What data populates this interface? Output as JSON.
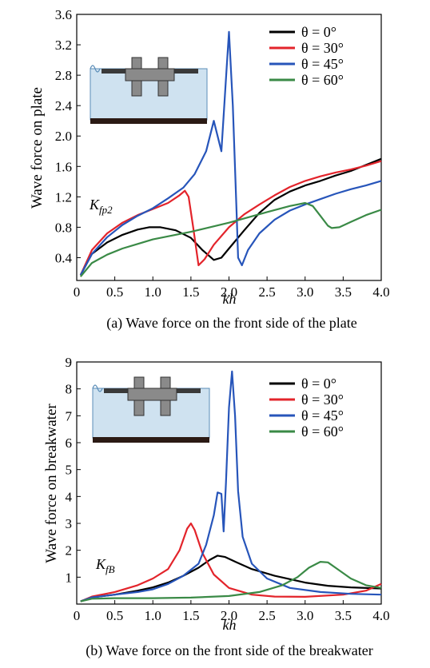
{
  "chart_data": [
    {
      "type": "line",
      "caption": "(a) Wave force on the front side of the plate",
      "xlabel": "kh",
      "ylabel": "Wave force on plate",
      "annotation": {
        "main": "K",
        "sub": "fp2"
      },
      "xlim": [
        0,
        4.0
      ],
      "ylim": [
        0.1,
        3.6
      ],
      "xticks": [
        "0",
        "0.5",
        "1.0",
        "1.5",
        "2.0",
        "2.5",
        "3.0",
        "3.5",
        "4.0"
      ],
      "yticks": [
        "0.4",
        "0.8",
        "1.2",
        "1.6",
        "2.0",
        "2.4",
        "2.8",
        "3.2",
        "3.6"
      ],
      "legend_position": "top-right",
      "series": [
        {
          "name": "θ = 0°",
          "color": "#000000",
          "points": [
            [
              0.05,
              0.17
            ],
            [
              0.2,
              0.45
            ],
            [
              0.4,
              0.6
            ],
            [
              0.6,
              0.7
            ],
            [
              0.8,
              0.77
            ],
            [
              0.95,
              0.8
            ],
            [
              1.1,
              0.8
            ],
            [
              1.3,
              0.76
            ],
            [
              1.5,
              0.66
            ],
            [
              1.65,
              0.5
            ],
            [
              1.8,
              0.37
            ],
            [
              1.9,
              0.4
            ],
            [
              2.0,
              0.52
            ],
            [
              2.2,
              0.76
            ],
            [
              2.4,
              0.99
            ],
            [
              2.6,
              1.16
            ],
            [
              2.8,
              1.27
            ],
            [
              3.0,
              1.35
            ],
            [
              3.2,
              1.41
            ],
            [
              3.4,
              1.48
            ],
            [
              3.6,
              1.54
            ],
            [
              3.8,
              1.62
            ],
            [
              4.0,
              1.7
            ]
          ]
        },
        {
          "name": "θ = 30°",
          "color": "#e3242b",
          "points": [
            [
              0.05,
              0.17
            ],
            [
              0.2,
              0.5
            ],
            [
              0.4,
              0.72
            ],
            [
              0.6,
              0.86
            ],
            [
              0.8,
              0.96
            ],
            [
              1.0,
              1.04
            ],
            [
              1.2,
              1.12
            ],
            [
              1.35,
              1.22
            ],
            [
              1.42,
              1.28
            ],
            [
              1.47,
              1.2
            ],
            [
              1.53,
              0.8
            ],
            [
              1.6,
              0.3
            ],
            [
              1.68,
              0.38
            ],
            [
              1.8,
              0.57
            ],
            [
              2.0,
              0.8
            ],
            [
              2.2,
              0.97
            ],
            [
              2.4,
              1.1
            ],
            [
              2.6,
              1.22
            ],
            [
              2.8,
              1.33
            ],
            [
              3.0,
              1.41
            ],
            [
              3.2,
              1.47
            ],
            [
              3.4,
              1.52
            ],
            [
              3.6,
              1.56
            ],
            [
              3.8,
              1.61
            ],
            [
              4.0,
              1.67
            ]
          ]
        },
        {
          "name": "θ = 45°",
          "color": "#2755ba",
          "points": [
            [
              0.05,
              0.17
            ],
            [
              0.2,
              0.45
            ],
            [
              0.4,
              0.67
            ],
            [
              0.6,
              0.83
            ],
            [
              0.8,
              0.95
            ],
            [
              1.0,
              1.05
            ],
            [
              1.2,
              1.18
            ],
            [
              1.4,
              1.32
            ],
            [
              1.55,
              1.5
            ],
            [
              1.7,
              1.8
            ],
            [
              1.8,
              2.2
            ],
            [
              1.9,
              1.8
            ],
            [
              1.97,
              2.9
            ],
            [
              2.0,
              3.37
            ],
            [
              2.05,
              2.4
            ],
            [
              2.1,
              1.0
            ],
            [
              2.12,
              0.4
            ],
            [
              2.17,
              0.3
            ],
            [
              2.25,
              0.5
            ],
            [
              2.4,
              0.72
            ],
            [
              2.6,
              0.9
            ],
            [
              2.8,
              1.02
            ],
            [
              3.0,
              1.1
            ],
            [
              3.2,
              1.17
            ],
            [
              3.4,
              1.24
            ],
            [
              3.6,
              1.3
            ],
            [
              3.8,
              1.35
            ],
            [
              4.0,
              1.41
            ]
          ]
        },
        {
          "name": "θ = 60°",
          "color": "#3a8a46",
          "points": [
            [
              0.05,
              0.15
            ],
            [
              0.2,
              0.33
            ],
            [
              0.4,
              0.44
            ],
            [
              0.6,
              0.52
            ],
            [
              0.8,
              0.58
            ],
            [
              1.0,
              0.64
            ],
            [
              1.5,
              0.74
            ],
            [
              2.0,
              0.86
            ],
            [
              2.5,
              1.0
            ],
            [
              2.8,
              1.08
            ],
            [
              3.0,
              1.12
            ],
            [
              3.1,
              1.08
            ],
            [
              3.2,
              0.95
            ],
            [
              3.3,
              0.82
            ],
            [
              3.35,
              0.79
            ],
            [
              3.45,
              0.8
            ],
            [
              3.6,
              0.87
            ],
            [
              3.8,
              0.96
            ],
            [
              4.0,
              1.03
            ]
          ]
        }
      ]
    },
    {
      "type": "line",
      "caption": "(b) Wave force on the front side of the breakwater",
      "xlabel": "kh",
      "ylabel": "Wave force on breakwater",
      "annotation": {
        "main": "K",
        "sub": "fB"
      },
      "xlim": [
        0,
        4.0
      ],
      "ylim": [
        0,
        9
      ],
      "xticks": [
        "0",
        "0.5",
        "1.0",
        "1.5",
        "2.0",
        "2.5",
        "3.0",
        "3.5",
        "4.0"
      ],
      "yticks": [
        "1",
        "2",
        "3",
        "4",
        "5",
        "6",
        "7",
        "8",
        "9"
      ],
      "legend_position": "top-right",
      "series": [
        {
          "name": "θ = 0°",
          "color": "#000000",
          "points": [
            [
              0.05,
              0.1
            ],
            [
              0.2,
              0.25
            ],
            [
              0.5,
              0.35
            ],
            [
              0.8,
              0.5
            ],
            [
              1.0,
              0.62
            ],
            [
              1.2,
              0.8
            ],
            [
              1.4,
              1.05
            ],
            [
              1.6,
              1.35
            ],
            [
              1.75,
              1.65
            ],
            [
              1.85,
              1.8
            ],
            [
              1.95,
              1.75
            ],
            [
              2.1,
              1.55
            ],
            [
              2.3,
              1.3
            ],
            [
              2.6,
              1.05
            ],
            [
              3.0,
              0.8
            ],
            [
              3.3,
              0.68
            ],
            [
              3.6,
              0.62
            ],
            [
              4.0,
              0.58
            ]
          ]
        },
        {
          "name": "θ = 30°",
          "color": "#e3242b",
          "points": [
            [
              0.05,
              0.1
            ],
            [
              0.2,
              0.28
            ],
            [
              0.5,
              0.45
            ],
            [
              0.8,
              0.7
            ],
            [
              1.0,
              0.95
            ],
            [
              1.2,
              1.3
            ],
            [
              1.35,
              2.0
            ],
            [
              1.45,
              2.8
            ],
            [
              1.5,
              3.0
            ],
            [
              1.55,
              2.75
            ],
            [
              1.65,
              1.9
            ],
            [
              1.8,
              1.1
            ],
            [
              2.0,
              0.6
            ],
            [
              2.3,
              0.35
            ],
            [
              2.6,
              0.28
            ],
            [
              3.0,
              0.27
            ],
            [
              3.5,
              0.35
            ],
            [
              3.8,
              0.5
            ],
            [
              4.0,
              0.75
            ]
          ]
        },
        {
          "name": "θ = 45°",
          "color": "#2755ba",
          "points": [
            [
              0.05,
              0.1
            ],
            [
              0.2,
              0.25
            ],
            [
              0.5,
              0.35
            ],
            [
              0.8,
              0.45
            ],
            [
              1.0,
              0.55
            ],
            [
              1.2,
              0.75
            ],
            [
              1.4,
              1.05
            ],
            [
              1.6,
              1.5
            ],
            [
              1.7,
              2.2
            ],
            [
              1.8,
              3.3
            ],
            [
              1.85,
              4.15
            ],
            [
              1.9,
              4.1
            ],
            [
              1.93,
              2.7
            ],
            [
              1.96,
              4.5
            ],
            [
              2.0,
              7.3
            ],
            [
              2.04,
              8.65
            ],
            [
              2.08,
              7.0
            ],
            [
              2.12,
              4.2
            ],
            [
              2.18,
              2.5
            ],
            [
              2.3,
              1.5
            ],
            [
              2.5,
              0.95
            ],
            [
              2.8,
              0.6
            ],
            [
              3.2,
              0.45
            ],
            [
              3.6,
              0.38
            ],
            [
              4.0,
              0.35
            ]
          ]
        },
        {
          "name": "θ = 60°",
          "color": "#3a8a46",
          "points": [
            [
              0.05,
              0.1
            ],
            [
              0.2,
              0.2
            ],
            [
              0.5,
              0.22
            ],
            [
              1.0,
              0.22
            ],
            [
              1.5,
              0.24
            ],
            [
              2.0,
              0.3
            ],
            [
              2.4,
              0.45
            ],
            [
              2.7,
              0.7
            ],
            [
              2.9,
              1.0
            ],
            [
              3.05,
              1.35
            ],
            [
              3.2,
              1.57
            ],
            [
              3.3,
              1.55
            ],
            [
              3.4,
              1.35
            ],
            [
              3.6,
              0.95
            ],
            [
              3.8,
              0.7
            ],
            [
              4.0,
              0.6
            ]
          ]
        }
      ]
    }
  ]
}
